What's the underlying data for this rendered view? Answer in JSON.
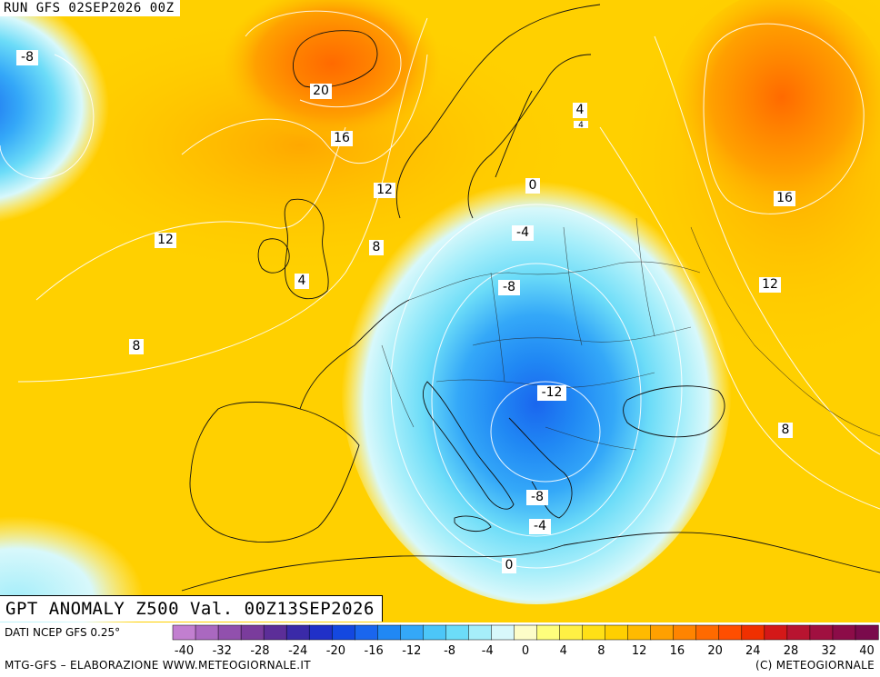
{
  "header": {
    "run_label": "RUN GFS 02SEP2026 00Z"
  },
  "map_title": "GPT ANOMALY Z500 Val. 00Z13SEP2026",
  "footer": {
    "source": "DATI NCEP GFS 0.25°",
    "credits": "MTG-GFS – ELABORAZIONE WWW.METEOGIORNALE.IT",
    "copyright": "(C) METEOGIORNALE"
  },
  "legend": {
    "ticks": [
      "-40",
      "-32",
      "-28",
      "-24",
      "-20",
      "-16",
      "-12",
      "-8",
      "-4",
      "0",
      "4",
      "8",
      "12",
      "16",
      "20",
      "24",
      "28",
      "32",
      "40"
    ],
    "colors": [
      "#c27fd0",
      "#aa68c0",
      "#9150ad",
      "#7a3c9c",
      "#5c2e98",
      "#3a2aa8",
      "#2030c8",
      "#1448e0",
      "#1a66ee",
      "#2088f4",
      "#34a8f8",
      "#4cc6f8",
      "#6cdcf8",
      "#a6eefa",
      "#d8f8fb",
      "#fdfdc8",
      "#fefe7c",
      "#fff044",
      "#ffe016",
      "#ffcf00",
      "#ffba00",
      "#ffa000",
      "#ff8400",
      "#ff6a00",
      "#ff4e00",
      "#f03000",
      "#d41818",
      "#b81430",
      "#a01040",
      "#8c0c48",
      "#7a0a4c"
    ]
  },
  "contour_labels": [
    {
      "text": "-8"
    },
    {
      "text": "20"
    },
    {
      "text": "16"
    },
    {
      "text": "12"
    },
    {
      "text": "12"
    },
    {
      "text": "8"
    },
    {
      "text": "4"
    },
    {
      "text": "8"
    },
    {
      "text": "4"
    },
    {
      "text": "0"
    },
    {
      "text": "-4"
    },
    {
      "text": "-8"
    },
    {
      "text": "-12"
    },
    {
      "text": "-8"
    },
    {
      "text": "-4"
    },
    {
      "text": "0"
    },
    {
      "text": "16"
    },
    {
      "text": "12"
    },
    {
      "text": "8"
    },
    {
      "text": "4"
    }
  ]
}
